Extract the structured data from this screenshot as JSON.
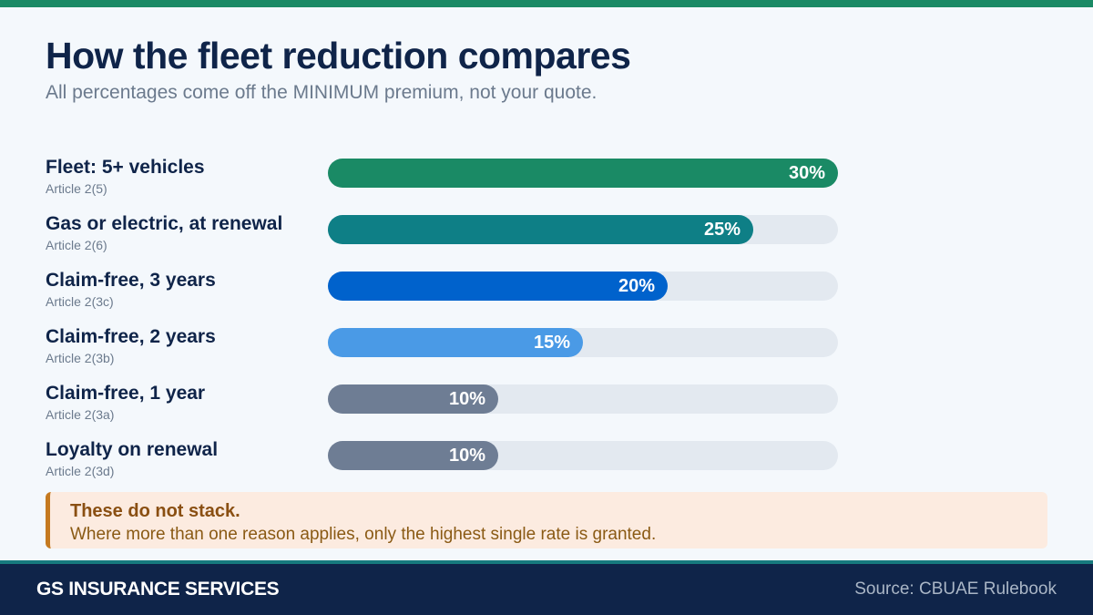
{
  "header": {
    "title": "How the fleet reduction compares",
    "subtitle": "All percentages come off the MINIMUM premium, not your quote."
  },
  "chart_data": {
    "type": "bar",
    "orientation": "horizontal",
    "xlim": [
      0,
      30
    ],
    "categories": [
      "Fleet: 5+ vehicles",
      "Gas or electric, at renewal",
      "Claim-free, 3 years",
      "Claim-free, 2 years",
      "Claim-free, 1 year",
      "Loyalty on renewal"
    ],
    "bars": [
      {
        "label": "Fleet: 5+ vehicles",
        "ref": "Article 2(5)",
        "value": 30,
        "display": "30%",
        "color": "#1a8a65"
      },
      {
        "label": "Gas or electric, at renewal",
        "ref": "Article 2(6)",
        "value": 25,
        "display": "25%",
        "color": "#0e7f86"
      },
      {
        "label": "Claim-free, 3 years",
        "ref": "Article 2(3c)",
        "value": 20,
        "display": "20%",
        "color": "#0062cc"
      },
      {
        "label": "Claim-free, 2 years",
        "ref": "Article 2(3b)",
        "value": 15,
        "display": "15%",
        "color": "#4a9ae6"
      },
      {
        "label": "Claim-free, 1 year",
        "ref": "Article 2(3a)",
        "value": 10,
        "display": "10%",
        "color": "#6e7d94"
      },
      {
        "label": "Loyalty on renewal",
        "ref": "Article 2(3d)",
        "value": 10,
        "display": "10%",
        "color": "#6e7d94"
      }
    ]
  },
  "note": {
    "title": "These do not stack.",
    "body": "Where more than one reason applies, only the highest single rate is granted.",
    "accent": "#c57a20"
  },
  "footer": {
    "brand": "GS INSURANCE SERVICES",
    "source": "Source: CBUAE Rulebook"
  },
  "colors": {
    "accent_green": "#1a8a65",
    "navy": "#0f2449"
  }
}
